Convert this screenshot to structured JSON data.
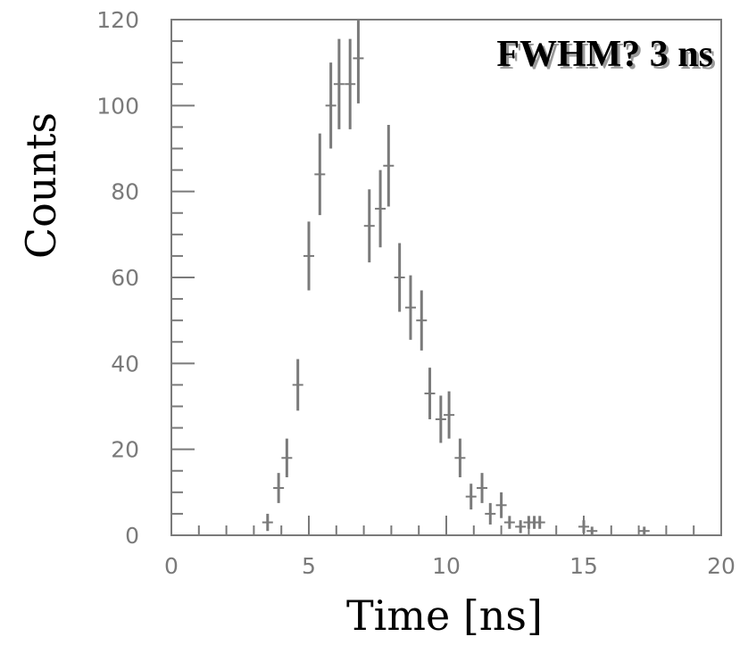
{
  "chart_data": {
    "type": "scatter",
    "title": "",
    "annotation": "FWHM? 3 ns",
    "xlabel": "Time [ns]",
    "ylabel": "Counts",
    "xlim": [
      0,
      20
    ],
    "ylim": [
      0,
      120
    ],
    "xticks": [
      "0",
      "5",
      "10",
      "15",
      "20"
    ],
    "yticks": [
      "0",
      "20",
      "40",
      "60",
      "80",
      "100",
      "120"
    ],
    "grid": false,
    "legend": "none",
    "colors": {
      "points": "#7a7a7a",
      "frame": "#7a7a7a",
      "text": "#000000"
    },
    "series": [
      {
        "x": [
          3.5,
          3.9,
          4.2,
          4.6,
          5.0,
          5.4,
          5.8,
          6.1,
          6.5,
          6.8,
          7.2,
          7.6,
          7.9,
          8.3,
          8.7,
          9.1,
          9.4,
          9.8,
          10.1,
          10.5,
          10.9,
          11.3,
          11.6,
          12.0,
          12.3,
          12.7,
          13.0,
          13.2,
          13.4,
          15.0,
          15.3,
          17.2
        ],
        "y": [
          3,
          11,
          18,
          35,
          65,
          84,
          100,
          105,
          105,
          111,
          72,
          76,
          86,
          60,
          53,
          50,
          33,
          27,
          28,
          18,
          9,
          11,
          5,
          7,
          3,
          2,
          3,
          3,
          3,
          2,
          1,
          1
        ],
        "err": [
          2,
          3.5,
          4.5,
          6,
          8,
          9.5,
          10,
          10.5,
          10.5,
          10.5,
          8.5,
          9,
          9.5,
          8,
          7.5,
          7,
          6,
          5.5,
          5.5,
          4.5,
          3,
          3.5,
          2.5,
          3,
          1.5,
          1.5,
          1.5,
          1.5,
          1.5,
          1.5,
          1,
          1
        ]
      }
    ]
  }
}
